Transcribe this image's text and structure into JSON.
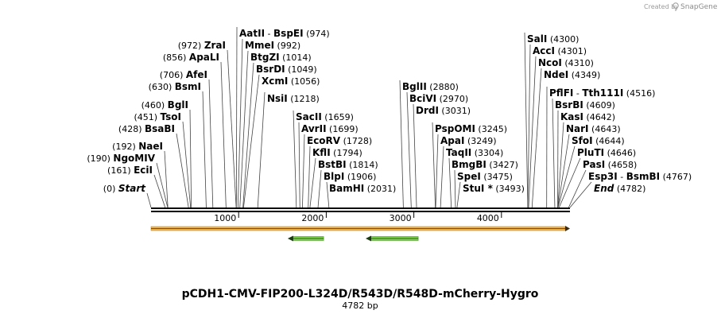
{
  "credit": {
    "prefix": "Created by",
    "brand": "SnapGene"
  },
  "plasmid": {
    "name": "pCDH1-CMV-FIP200-L324D/R543D/R548D-mCherry-Hygro",
    "length_label": "4782 bp",
    "length": 4782
  },
  "ruler": {
    "ticks": [
      "1000",
      "2000",
      "3000",
      "4000"
    ]
  },
  "sites": [
    {
      "pos_text": "(0)",
      "name": "Start",
      "italic": true,
      "bp": 0
    },
    {
      "pos_text": "(161)",
      "name": "EciI",
      "bp": 161
    },
    {
      "pos_text": "(190)",
      "name": "NgoMIV",
      "bp": 190
    },
    {
      "pos_text": "(192)",
      "name": "NaeI",
      "bp": 192
    },
    {
      "pos_text": "(428)",
      "name": "BsaBI",
      "bp": 428
    },
    {
      "pos_text": "(451)",
      "name": "TsoI",
      "bp": 451
    },
    {
      "pos_text": "(460)",
      "name": "BglI",
      "bp": 460
    },
    {
      "pos_text": "(630)",
      "name": "BsmI",
      "bp": 630
    },
    {
      "pos_text": "(706)",
      "name": "AfeI",
      "bp": 706
    },
    {
      "pos_text": "(856)",
      "name": "ApaLI",
      "bp": 856
    },
    {
      "pos_text": "(972)",
      "name": "ZraI",
      "bp": 972
    },
    {
      "name": "AatII",
      "name2": "BspEI",
      "pos_text": "(974)",
      "bp": 974
    },
    {
      "name": "MmeI",
      "pos_text": "(992)",
      "bp": 992
    },
    {
      "name": "BtgZI",
      "pos_text": "(1014)",
      "bp": 1014
    },
    {
      "name": "BsrDI",
      "pos_text": "(1049)",
      "bp": 1049
    },
    {
      "name": "XcmI",
      "pos_text": "(1056)",
      "bp": 1056
    },
    {
      "name": "NsiI",
      "pos_text": "(1218)",
      "bp": 1218
    },
    {
      "name": "SacII",
      "pos_text": "(1659)",
      "bp": 1659
    },
    {
      "name": "AvrII",
      "pos_text": "(1699)",
      "bp": 1699
    },
    {
      "name": "EcoRV",
      "pos_text": "(1728)",
      "bp": 1728
    },
    {
      "name": "KflI",
      "pos_text": "(1794)",
      "bp": 1794
    },
    {
      "name": "BstBI",
      "pos_text": "(1814)",
      "bp": 1814
    },
    {
      "name": "BlpI",
      "pos_text": "(1906)",
      "bp": 1906
    },
    {
      "name": "BamHI",
      "pos_text": "(2031)",
      "bp": 2031
    },
    {
      "name": "BglII",
      "pos_text": "(2880)",
      "bp": 2880
    },
    {
      "name": "BciVI",
      "pos_text": "(2970)",
      "bp": 2970
    },
    {
      "name": "DrdI",
      "pos_text": "(3031)",
      "bp": 3031
    },
    {
      "name": "PspOMI",
      "pos_text": "(3245)",
      "bp": 3245
    },
    {
      "name": "ApaI",
      "pos_text": "(3249)",
      "bp": 3249
    },
    {
      "name": "TaqII",
      "pos_text": "(3304)",
      "bp": 3304
    },
    {
      "name": "BmgBI",
      "pos_text": "(3427)",
      "bp": 3427
    },
    {
      "name": "SpeI",
      "pos_text": "(3475)",
      "bp": 3475
    },
    {
      "name": "StuI *",
      "pos_text": "(3493)",
      "bp": 3493
    },
    {
      "name": "SalI",
      "pos_text": "(4300)",
      "bp": 4300
    },
    {
      "name": "AccI",
      "pos_text": "(4301)",
      "bp": 4301
    },
    {
      "name": "NcoI",
      "pos_text": "(4310)",
      "bp": 4310
    },
    {
      "name": "NdeI",
      "pos_text": "(4349)",
      "bp": 4349
    },
    {
      "name": "PflFI",
      "name2": "Tth111I",
      "pos_text": "(4516)",
      "bp": 4516
    },
    {
      "name": "BsrBI",
      "pos_text": "(4609)",
      "bp": 4609
    },
    {
      "name": "KasI",
      "pos_text": "(4642)",
      "bp": 4642
    },
    {
      "name": "NarI",
      "pos_text": "(4643)",
      "bp": 4643
    },
    {
      "name": "SfoI",
      "pos_text": "(4644)",
      "bp": 4644
    },
    {
      "name": "PluTI",
      "pos_text": "(4646)",
      "bp": 4646
    },
    {
      "name": "PasI",
      "pos_text": "(4658)",
      "bp": 4658
    },
    {
      "name": "Esp3I",
      "name2": "BsmBI",
      "pos_text": "(4767)",
      "bp": 4767
    },
    {
      "name": "End",
      "italic": true,
      "pos_text": "(4782)",
      "bp": 4782
    }
  ],
  "features": {
    "main": {
      "start": 0,
      "end": 4782,
      "direction": "forward",
      "color": "#f0b44a"
    },
    "arrows": [
      {
        "start": 1560,
        "end": 1970,
        "direction": "reverse",
        "color": "#7cd34a"
      },
      {
        "start": 2450,
        "end": 3050,
        "direction": "reverse",
        "color": "#7cd34a"
      }
    ]
  }
}
